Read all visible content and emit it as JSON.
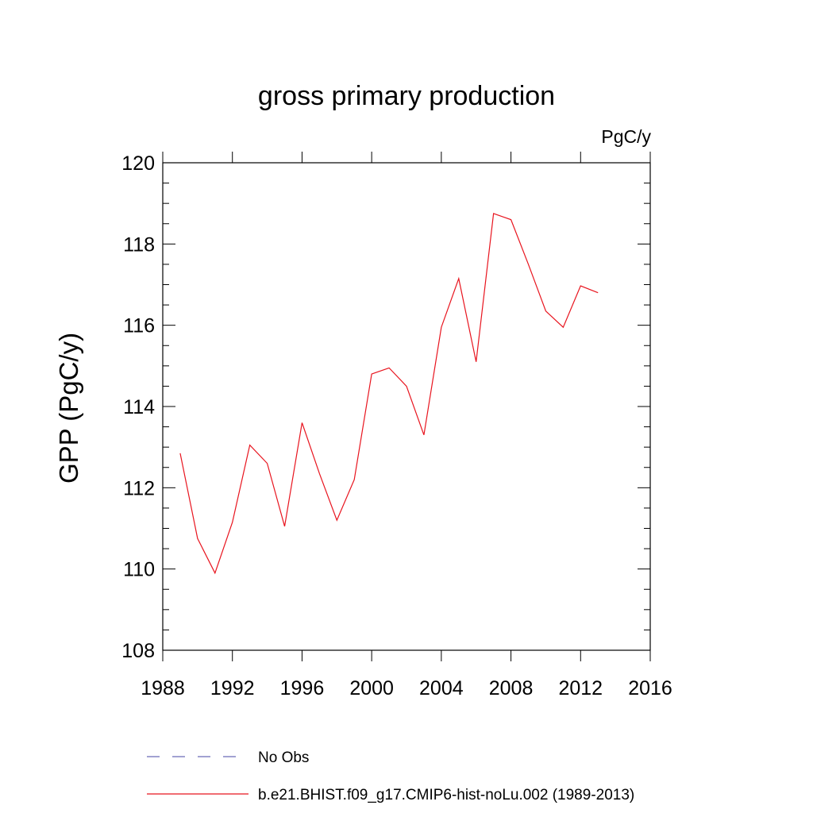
{
  "chart_data": {
    "type": "line",
    "title": "gross primary production",
    "units": "PgC/y",
    "ylabel": "GPP  (PgC/y)",
    "xlabel": "",
    "xlim": [
      1988,
      2016
    ],
    "ylim": [
      108,
      120
    ],
    "xticks": [
      1988,
      1992,
      1996,
      2000,
      2004,
      2008,
      2012,
      2016
    ],
    "yticks": [
      108,
      110,
      112,
      114,
      116,
      118,
      120
    ],
    "grid": false,
    "legend_position": "bottom",
    "series": [
      {
        "name": "No Obs",
        "color": "#6a6ab8",
        "dash": "dashed",
        "x": [],
        "y": []
      },
      {
        "name": "b.e21.BHIST.f09_g17.CMIP6-hist-noLu.002 (1989-2013)",
        "color": "#e8141e",
        "dash": "solid",
        "x": [
          1989,
          1990,
          1991,
          1992,
          1993,
          1994,
          1995,
          1996,
          1997,
          1998,
          1999,
          2000,
          2001,
          2002,
          2003,
          2004,
          2005,
          2006,
          2007,
          2008,
          2009,
          2010,
          2011,
          2012,
          2013
        ],
        "y": [
          112.85,
          110.75,
          109.9,
          111.15,
          113.05,
          112.6,
          111.05,
          113.6,
          112.35,
          111.2,
          112.2,
          114.8,
          114.95,
          114.5,
          113.3,
          115.95,
          117.15,
          115.1,
          118.75,
          118.6,
          117.5,
          116.35,
          115.95,
          116.97,
          116.8
        ]
      }
    ]
  }
}
